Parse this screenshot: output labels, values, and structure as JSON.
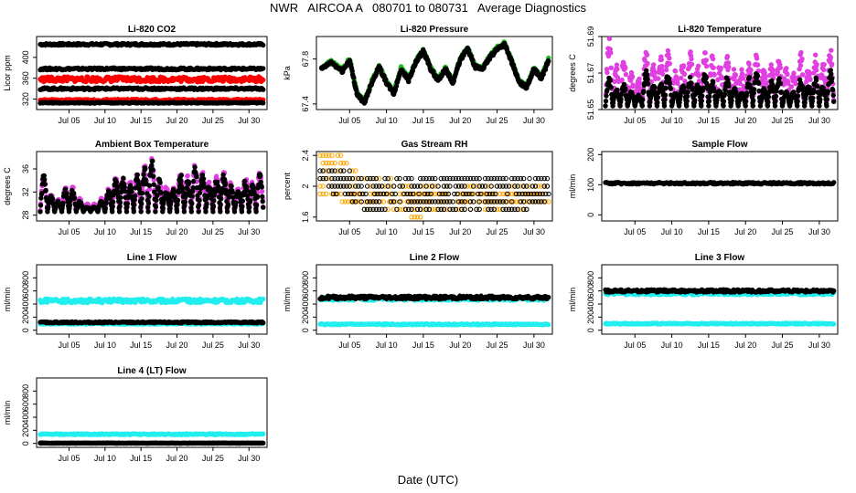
{
  "figure": {
    "title": "NWR   AIRCOA A   080701 to 080731   Average Diagnostics",
    "xlabel": "Date (UTC)"
  },
  "colors": {
    "black": "#000000",
    "red": "#ff0000",
    "green": "#22bb22",
    "magenta": "#e040e0",
    "orange": "#ffa500",
    "cyan": "#22eeee"
  },
  "chart_data": [
    {
      "type": "scatter",
      "title": "Li-820 CO2",
      "ylabel": "Licor ppm",
      "x_range": [
        1,
        32
      ],
      "x_ticks": [
        "Jul 05",
        "Jul 10",
        "Jul 15",
        "Jul 20",
        "Jul 25",
        "Jul 30"
      ],
      "x_tick_days": [
        5,
        10,
        15,
        20,
        25,
        30
      ],
      "ylim": [
        300,
        440
      ],
      "y_ticks": [
        320,
        360,
        400
      ],
      "series": [
        {
          "color": "#000000",
          "level": 425,
          "noise": 2,
          "style": "band"
        },
        {
          "color": "#000000",
          "level": 378,
          "noise": 2,
          "style": "band"
        },
        {
          "color": "#ff0000",
          "level": 358,
          "noise": 5,
          "style": "band"
        },
        {
          "color": "#000000",
          "level": 340,
          "noise": 2,
          "style": "band"
        },
        {
          "color": "#ff0000",
          "level": 318,
          "noise": 2,
          "style": "band"
        },
        {
          "color": "#000000",
          "level": 313,
          "noise": 1,
          "style": "band"
        }
      ]
    },
    {
      "type": "scatter",
      "title": "Li-820 Pressure",
      "ylabel": "kPa",
      "x_range": [
        1,
        32
      ],
      "x_ticks": [
        "Jul 05",
        "Jul 10",
        "Jul 15",
        "Jul 20",
        "Jul 25",
        "Jul 30"
      ],
      "x_tick_days": [
        5,
        10,
        15,
        20,
        25,
        30
      ],
      "ylim": [
        67.35,
        68.0
      ],
      "y_ticks": [
        67.4,
        67.8
      ],
      "series": [
        {
          "color": "#22bb22",
          "style": "line",
          "points": [
            [
              1.2,
              67.72
            ],
            [
              2.5,
              67.78
            ],
            [
              4,
              67.7
            ],
            [
              5,
              67.8
            ],
            [
              6,
              67.5
            ],
            [
              7,
              67.42
            ],
            [
              8,
              67.6
            ],
            [
              9,
              67.74
            ],
            [
              10,
              67.6
            ],
            [
              11,
              67.5
            ],
            [
              12,
              67.72
            ],
            [
              13,
              67.62
            ],
            [
              14,
              67.78
            ],
            [
              15,
              67.88
            ],
            [
              16,
              67.72
            ],
            [
              17,
              67.62
            ],
            [
              18,
              67.72
            ],
            [
              19,
              67.6
            ],
            [
              20,
              67.8
            ],
            [
              21,
              67.9
            ],
            [
              22,
              67.74
            ],
            [
              23,
              67.72
            ],
            [
              24,
              67.82
            ],
            [
              25,
              67.9
            ],
            [
              26,
              67.94
            ],
            [
              27,
              67.78
            ],
            [
              28,
              67.6
            ],
            [
              29,
              67.56
            ],
            [
              30,
              67.72
            ],
            [
              31,
              67.64
            ],
            [
              32,
              67.8
            ]
          ]
        },
        {
          "color": "#000000",
          "style": "line",
          "points": [
            [
              1.2,
              67.71
            ],
            [
              2.5,
              67.77
            ],
            [
              4,
              67.69
            ],
            [
              5,
              67.79
            ],
            [
              6,
              67.49
            ],
            [
              7,
              67.41
            ],
            [
              8,
              67.59
            ],
            [
              9,
              67.73
            ],
            [
              10,
              67.59
            ],
            [
              11,
              67.49
            ],
            [
              12,
              67.71
            ],
            [
              13,
              67.61
            ],
            [
              14,
              67.77
            ],
            [
              15,
              67.87
            ],
            [
              16,
              67.71
            ],
            [
              17,
              67.61
            ],
            [
              18,
              67.71
            ],
            [
              19,
              67.59
            ],
            [
              20,
              67.79
            ],
            [
              21,
              67.89
            ],
            [
              22,
              67.73
            ],
            [
              23,
              67.71
            ],
            [
              24,
              67.81
            ],
            [
              25,
              67.89
            ],
            [
              26,
              67.93
            ],
            [
              27,
              67.77
            ],
            [
              28,
              67.59
            ],
            [
              29,
              67.55
            ],
            [
              30,
              67.71
            ],
            [
              31,
              67.63
            ],
            [
              32,
              67.79
            ]
          ]
        }
      ]
    },
    {
      "type": "scatter",
      "title": "Li-820 Temperature",
      "ylabel": "degrees C",
      "x_range": [
        1,
        32
      ],
      "x_ticks": [
        "Jul 05",
        "Jul 10",
        "Jul 15",
        "Jul 20",
        "Jul 25",
        "Jul 30"
      ],
      "x_tick_days": [
        5,
        10,
        15,
        20,
        25,
        30
      ],
      "ylim": [
        51.65,
        51.69
      ],
      "y_ticks": [
        51.65,
        51.67,
        51.69
      ],
      "series": [
        {
          "color": "#e040e0",
          "style": "spikes",
          "base": 51.652,
          "peaks": [
            51.69,
            51.675,
            51.68,
            51.672,
            51.668,
            51.684,
            51.676,
            51.68,
            51.684,
            51.672,
            51.678,
            51.682,
            51.676,
            51.684,
            51.68,
            51.676,
            51.68,
            51.674,
            51.672,
            51.68,
            51.684,
            51.676,
            51.678,
            51.68,
            51.674,
            51.672,
            51.682,
            51.676,
            51.68,
            51.678,
            51.684
          ]
        },
        {
          "color": "#000000",
          "style": "spikes",
          "base": 51.652,
          "peaks": [
            51.668,
            51.662,
            51.664,
            51.66,
            51.658,
            51.672,
            51.664,
            51.666,
            51.672,
            51.66,
            51.664,
            51.668,
            51.664,
            51.672,
            51.666,
            51.662,
            51.668,
            51.662,
            51.66,
            51.668,
            51.672,
            51.662,
            51.666,
            51.668,
            51.66,
            51.66,
            51.668,
            51.664,
            51.668,
            51.664,
            51.672
          ]
        }
      ]
    },
    {
      "type": "scatter",
      "title": "Ambient Box Temperature",
      "ylabel": "degrees C",
      "x_range": [
        1,
        32
      ],
      "x_ticks": [
        "Jul 05",
        "Jul 10",
        "Jul 15",
        "Jul 20",
        "Jul 25",
        "Jul 30"
      ],
      "x_tick_days": [
        5,
        10,
        15,
        20,
        25,
        30
      ],
      "ylim": [
        27,
        39
      ],
      "y_ticks": [
        28,
        32,
        36
      ],
      "series": [
        {
          "color": "#e040e0",
          "style": "spikes",
          "base": 28.8,
          "peaks": [
            35.5,
            32,
            31,
            33,
            33,
            31,
            30,
            30,
            31,
            33,
            35,
            35,
            34,
            36,
            37,
            38.5,
            35,
            33,
            33,
            36,
            35,
            37,
            36,
            34,
            35,
            36,
            34,
            33,
            35,
            34,
            36
          ]
        },
        {
          "color": "#000000",
          "style": "spikes",
          "base": 28.6,
          "peaks": [
            35,
            31.5,
            30.5,
            32.5,
            32.5,
            30.5,
            29.5,
            29.5,
            30.5,
            32.5,
            34.5,
            34.5,
            33.5,
            35.5,
            36.5,
            38,
            34.5,
            32.5,
            32.5,
            35.5,
            34.5,
            36.5,
            35.5,
            33.5,
            34.5,
            35.5,
            33.5,
            32.5,
            34.5,
            33.5,
            35.5
          ]
        }
      ]
    },
    {
      "type": "scatter",
      "title": "Gas Stream RH",
      "ylabel": "percent",
      "x_range": [
        1,
        32
      ],
      "x_ticks": [
        "Jul 05",
        "Jul 10",
        "Jul 15",
        "Jul 20",
        "Jul 25",
        "Jul 30"
      ],
      "x_tick_days": [
        5,
        10,
        15,
        20,
        25,
        30
      ],
      "ylim": [
        1.55,
        2.45
      ],
      "y_ticks": [
        1.6,
        2.0,
        2.4
      ],
      "series": [
        {
          "color": "#ffa500",
          "style": "levels",
          "levels": [
            2.4,
            2.3,
            2.2,
            2.1,
            2.0,
            1.9,
            1.8,
            1.7,
            1.6
          ],
          "spans": [
            [
              1,
              4
            ],
            [
              1,
              5
            ],
            [
              1,
              6
            ],
            [
              1,
              12
            ],
            [
              1,
              32
            ],
            [
              1,
              32
            ],
            [
              4,
              32
            ],
            [
              7,
              29
            ],
            [
              13,
              15
            ]
          ]
        },
        {
          "color": "#000000",
          "style": "levels",
          "levels": [
            2.2,
            2.1,
            2.0,
            1.9,
            1.8,
            1.7
          ],
          "spans": [
            [
              1,
              5
            ],
            [
              1,
              32
            ],
            [
              1,
              32
            ],
            [
              2,
              32
            ],
            [
              5,
              32
            ],
            [
              7,
              29
            ]
          ]
        }
      ]
    },
    {
      "type": "scatter",
      "title": "Sample Flow",
      "ylabel": "ml/min",
      "x_range": [
        1,
        32
      ],
      "x_ticks": [
        "Jul 05",
        "Jul 10",
        "Jul 15",
        "Jul 20",
        "Jul 25",
        "Jul 30"
      ],
      "x_tick_days": [
        5,
        10,
        15,
        20,
        25,
        30
      ],
      "ylim": [
        -20,
        210
      ],
      "y_ticks": [
        0,
        100,
        200
      ],
      "series": [
        {
          "color": "#000000",
          "level": 105,
          "noise": 3,
          "style": "band"
        }
      ]
    },
    {
      "type": "scatter",
      "title": "Line 1 Flow",
      "ylabel": "ml/min",
      "x_range": [
        1,
        32
      ],
      "x_ticks": [
        "Jul 05",
        "Jul 10",
        "Jul 15",
        "Jul 20",
        "Jul 25",
        "Jul 30"
      ],
      "x_tick_days": [
        5,
        10,
        15,
        20,
        25,
        30
      ],
      "ylim": [
        -60,
        1000
      ],
      "y_ticks": [
        0,
        200,
        400,
        600,
        800
      ],
      "series": [
        {
          "color": "#22eeee",
          "level": 450,
          "noise": 30,
          "style": "band"
        },
        {
          "color": "#22eeee",
          "level": 100,
          "noise": 10,
          "style": "band"
        },
        {
          "color": "#000000",
          "level": 120,
          "noise": 10,
          "style": "band"
        }
      ]
    },
    {
      "type": "scatter",
      "title": "Line 2 Flow",
      "ylabel": "ml/min",
      "x_range": [
        1,
        32
      ],
      "x_ticks": [
        "Jul 05",
        "Jul 10",
        "Jul 15",
        "Jul 20",
        "Jul 25",
        "Jul 30"
      ],
      "x_tick_days": [
        5,
        10,
        15,
        20,
        25,
        30
      ],
      "ylim": [
        -60,
        1000
      ],
      "y_ticks": [
        0,
        200,
        400,
        600,
        800
      ],
      "series": [
        {
          "color": "#22eeee",
          "level": 480,
          "noise": 25,
          "style": "band"
        },
        {
          "color": "#000000",
          "level": 500,
          "noise": 25,
          "style": "band"
        },
        {
          "color": "#22eeee",
          "level": 90,
          "noise": 8,
          "style": "band"
        }
      ]
    },
    {
      "type": "scatter",
      "title": "Line 3 Flow",
      "ylabel": "ml/min",
      "x_range": [
        1,
        32
      ],
      "x_ticks": [
        "Jul 05",
        "Jul 10",
        "Jul 15",
        "Jul 20",
        "Jul 25",
        "Jul 30"
      ],
      "x_tick_days": [
        5,
        10,
        15,
        20,
        25,
        30
      ],
      "ylim": [
        -60,
        1000
      ],
      "y_ticks": [
        0,
        200,
        400,
        600,
        800
      ],
      "series": [
        {
          "color": "#22eeee",
          "level": 560,
          "noise": 20,
          "style": "band"
        },
        {
          "color": "#000000",
          "level": 600,
          "noise": 20,
          "style": "band"
        },
        {
          "color": "#22eeee",
          "level": 100,
          "noise": 8,
          "style": "band"
        }
      ]
    },
    {
      "type": "scatter",
      "title": "Line 4 (LT) Flow",
      "ylabel": "ml/min",
      "x_range": [
        1,
        32
      ],
      "x_ticks": [
        "Jul 05",
        "Jul 10",
        "Jul 15",
        "Jul 20",
        "Jul 25",
        "Jul 30"
      ],
      "x_tick_days": [
        5,
        10,
        15,
        20,
        25,
        30
      ],
      "ylim": [
        -60,
        1000
      ],
      "y_ticks": [
        0,
        200,
        400,
        600,
        800
      ],
      "series": [
        {
          "color": "#22eeee",
          "level": 140,
          "noise": 8,
          "style": "band"
        },
        {
          "color": "#000000",
          "level": 5,
          "noise": 3,
          "style": "band"
        }
      ]
    }
  ]
}
